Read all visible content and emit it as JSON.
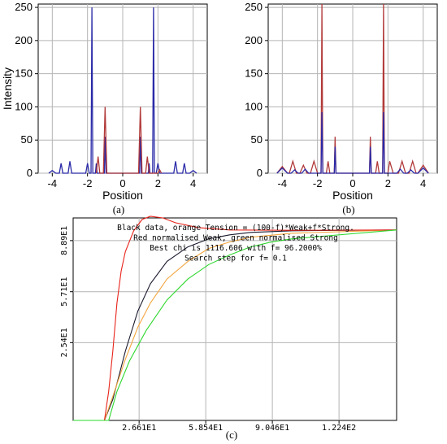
{
  "panel_labels": {
    "a": "(a)",
    "b": "(b)",
    "c": "(c)"
  },
  "colors": {
    "blue": "#2a2aa8",
    "red": "#b23a3a",
    "grid": "#b4b4b4",
    "axis": "#000000",
    "c_black": "#1a1a2e",
    "c_red": "#e8231a",
    "c_orange": "#f4a640",
    "c_green": "#2ed82e"
  },
  "chart_data": [
    {
      "type": "line",
      "id": "a",
      "xlabel": "Position",
      "ylabel": "Intensity",
      "xlim": [
        -4.8,
        4.8
      ],
      "ylim": [
        0,
        255
      ],
      "xticks": [
        -4,
        -2,
        0,
        2,
        4
      ],
      "yticks": [
        0,
        50,
        100,
        150,
        200,
        250
      ],
      "grid": true,
      "series": [
        {
          "color": "blue",
          "points": [
            [
              -4.2,
              0
            ],
            [
              -4.0,
              4
            ],
            [
              -3.8,
              0
            ],
            [
              -3.6,
              0
            ],
            [
              -3.5,
              15
            ],
            [
              -3.4,
              0
            ],
            [
              -3.1,
              0
            ],
            [
              -3.0,
              18
            ],
            [
              -2.9,
              0
            ],
            [
              -2.6,
              0
            ],
            [
              -2.5,
              0
            ],
            [
              -2.1,
              0
            ],
            [
              -2.0,
              15
            ],
            [
              -1.9,
              0
            ],
            [
              -1.8,
              0
            ],
            [
              -1.75,
              250
            ],
            [
              -1.7,
              0
            ],
            [
              -1.55,
              0
            ],
            [
              -1.5,
              15
            ],
            [
              -1.45,
              0
            ],
            [
              -1.05,
              0
            ],
            [
              -1.0,
              55
            ],
            [
              -0.95,
              0
            ],
            [
              0.0,
              0
            ],
            [
              0.95,
              0
            ],
            [
              1.0,
              55
            ],
            [
              1.05,
              0
            ],
            [
              1.45,
              0
            ],
            [
              1.5,
              15
            ],
            [
              1.55,
              0
            ],
            [
              1.7,
              0
            ],
            [
              1.75,
              250
            ],
            [
              1.8,
              0
            ],
            [
              1.9,
              0
            ],
            [
              2.0,
              15
            ],
            [
              2.1,
              0
            ],
            [
              2.9,
              0
            ],
            [
              3.0,
              18
            ],
            [
              3.1,
              0
            ],
            [
              3.4,
              0
            ],
            [
              3.5,
              15
            ],
            [
              3.6,
              0
            ],
            [
              3.8,
              0
            ],
            [
              4.0,
              4
            ],
            [
              4.2,
              0
            ]
          ]
        },
        {
          "color": "red",
          "points": [
            [
              -1.1,
              0
            ],
            [
              -1.0,
              100
            ],
            [
              -0.9,
              0
            ],
            [
              -1.5,
              0
            ],
            [
              -1.4,
              25
            ],
            [
              -1.3,
              0
            ],
            [
              0.9,
              0
            ],
            [
              1.0,
              100
            ],
            [
              1.1,
              0
            ],
            [
              1.3,
              0
            ],
            [
              1.4,
              25
            ],
            [
              1.5,
              0
            ],
            [
              2.0,
              0
            ],
            [
              2.1,
              5
            ],
            [
              2.2,
              0
            ]
          ]
        }
      ]
    },
    {
      "type": "line",
      "id": "b",
      "xlabel": "Position",
      "ylabel": "",
      "xlim": [
        -4.8,
        4.8
      ],
      "ylim": [
        0,
        255
      ],
      "xticks": [
        -4,
        -2,
        0,
        2,
        4
      ],
      "yticks": [
        0,
        50,
        100,
        150,
        200,
        250
      ],
      "grid": true,
      "series": [
        {
          "color": "red",
          "points": [
            [
              -4.3,
              0
            ],
            [
              -4.0,
              10
            ],
            [
              -3.7,
              0
            ],
            [
              -3.6,
              0
            ],
            [
              -3.4,
              18
            ],
            [
              -3.2,
              0
            ],
            [
              -3.0,
              0
            ],
            [
              -2.8,
              12
            ],
            [
              -2.6,
              0
            ],
            [
              -2.4,
              0
            ],
            [
              -2.2,
              18
            ],
            [
              -2.0,
              0
            ],
            [
              -1.8,
              0
            ],
            [
              -1.75,
              255
            ],
            [
              -1.7,
              0
            ],
            [
              -1.5,
              0
            ],
            [
              -1.4,
              18
            ],
            [
              -1.3,
              0
            ],
            [
              -1.05,
              0
            ],
            [
              -1.0,
              55
            ],
            [
              -0.95,
              0
            ],
            [
              0.95,
              0
            ],
            [
              1.0,
              55
            ],
            [
              1.05,
              0
            ],
            [
              1.3,
              0
            ],
            [
              1.4,
              18
            ],
            [
              1.5,
              0
            ],
            [
              1.7,
              0
            ],
            [
              1.75,
              255
            ],
            [
              1.8,
              0
            ],
            [
              2.0,
              0
            ],
            [
              2.1,
              18
            ],
            [
              2.3,
              0
            ],
            [
              2.6,
              0
            ],
            [
              2.8,
              18
            ],
            [
              3.0,
              0
            ],
            [
              3.2,
              0
            ],
            [
              3.4,
              18
            ],
            [
              3.6,
              0
            ],
            [
              3.7,
              0
            ],
            [
              4.0,
              12
            ],
            [
              4.3,
              0
            ]
          ]
        },
        {
          "color": "blue",
          "points": [
            [
              -4.3,
              0
            ],
            [
              -4.0,
              8
            ],
            [
              -3.7,
              0
            ],
            [
              -3.5,
              0
            ],
            [
              -3.3,
              5
            ],
            [
              -3.1,
              0
            ],
            [
              -2.9,
              0
            ],
            [
              -2.7,
              6
            ],
            [
              -2.5,
              0
            ],
            [
              -1.8,
              0
            ],
            [
              -1.75,
              92
            ],
            [
              -1.7,
              0
            ],
            [
              -1.05,
              0
            ],
            [
              -1.0,
              40
            ],
            [
              -0.95,
              0
            ],
            [
              0.95,
              0
            ],
            [
              1.0,
              40
            ],
            [
              1.05,
              0
            ],
            [
              1.7,
              0
            ],
            [
              1.75,
              92
            ],
            [
              1.8,
              0
            ],
            [
              2.5,
              0
            ],
            [
              2.7,
              6
            ],
            [
              2.9,
              0
            ],
            [
              3.1,
              0
            ],
            [
              3.3,
              5
            ],
            [
              3.5,
              0
            ],
            [
              3.7,
              0
            ],
            [
              4.0,
              8
            ],
            [
              4.3,
              0
            ]
          ]
        }
      ]
    },
    {
      "type": "line",
      "id": "c",
      "annotations": [
        "Black data, orange Tension = (100-f)*Weak+f*Strong.",
        "Red normalised Weak, green normalised Strong",
        "Best chi is 1116.606 with f= 96.2000%",
        "Search step for f= 0.1"
      ],
      "xlim": [
        -5,
        150
      ],
      "ylim": [
        -23,
        103
      ],
      "xticks": [
        "2.661E1",
        "5.854E1",
        "9.046E1",
        "1.224E2"
      ],
      "xtick_values": [
        26.61,
        58.54,
        90.46,
        122.4
      ],
      "yticks": [
        "2.54E1",
        "5.71E1",
        "8.89E1"
      ],
      "ytick_values": [
        25.4,
        57.1,
        88.9
      ],
      "grid": true,
      "series": [
        {
          "color": "c_black",
          "points": [
            [
              -5,
              -23
            ],
            [
              10,
              -23
            ],
            [
              14,
              -10
            ],
            [
              20,
              20
            ],
            [
              26,
              45
            ],
            [
              32,
              62
            ],
            [
              40,
              76
            ],
            [
              50,
              85
            ],
            [
              60,
              90
            ],
            [
              70,
              92.5
            ],
            [
              80,
              94
            ],
            [
              100,
              95
            ],
            [
              150,
              95.5
            ]
          ]
        },
        {
          "color": "c_orange",
          "points": [
            [
              -5,
              -23
            ],
            [
              10,
              -23
            ],
            [
              14,
              -8
            ],
            [
              20,
              15
            ],
            [
              26,
              35
            ],
            [
              32,
              50
            ],
            [
              40,
              65
            ],
            [
              50,
              76
            ],
            [
              60,
              84
            ],
            [
              70,
              88
            ],
            [
              80,
              91
            ],
            [
              100,
              93.5
            ],
            [
              150,
              95.5
            ]
          ]
        },
        {
          "color": "c_red",
          "points": [
            [
              -5,
              -23
            ],
            [
              10,
              -23
            ],
            [
              12,
              -5
            ],
            [
              14,
              20
            ],
            [
              16,
              50
            ],
            [
              18,
              70
            ],
            [
              20,
              82
            ],
            [
              24,
              95
            ],
            [
              28,
              102
            ],
            [
              32,
              104
            ],
            [
              38,
              103
            ],
            [
              44,
              100
            ],
            [
              55,
              97
            ],
            [
              70,
              95.5
            ],
            [
              100,
              95.3
            ],
            [
              150,
              95.5
            ]
          ]
        },
        {
          "color": "c_green",
          "points": [
            [
              -5,
              -23
            ],
            [
              12,
              -23
            ],
            [
              16,
              -5
            ],
            [
              22,
              14
            ],
            [
              30,
              33
            ],
            [
              40,
              52
            ],
            [
              50,
              65
            ],
            [
              60,
              74
            ],
            [
              70,
              80
            ],
            [
              80,
              85
            ],
            [
              90,
              88
            ],
            [
              100,
              90
            ],
            [
              150,
              95.5
            ]
          ]
        }
      ]
    }
  ]
}
